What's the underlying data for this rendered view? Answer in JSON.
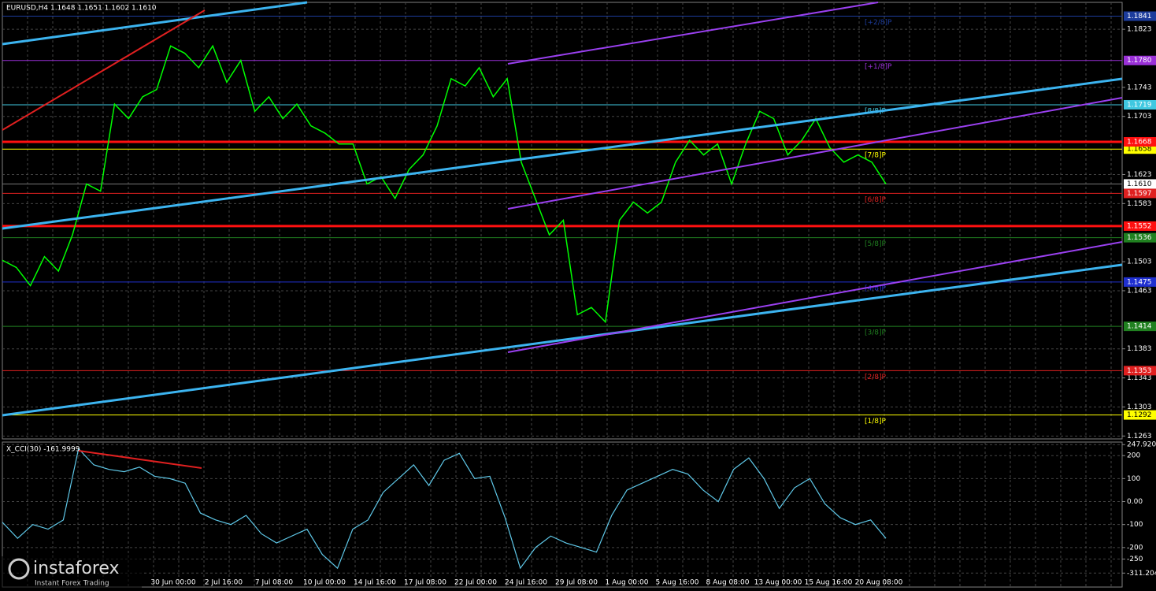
{
  "chart_data": [
    {
      "type": "line",
      "title": "EURUSD,H4  1.1648 1.1651 1.1602 1.1610",
      "color": "#00ff00",
      "values": [
        1.1505,
        1.1495,
        1.147,
        1.151,
        1.149,
        1.154,
        1.161,
        1.16,
        1.172,
        1.17,
        1.173,
        1.174,
        1.18,
        1.179,
        1.177,
        1.18,
        1.175,
        1.178,
        1.171,
        1.173,
        1.17,
        1.172,
        1.169,
        1.168,
        1.1665,
        1.1665,
        1.161,
        1.162,
        1.159,
        1.163,
        1.165,
        1.169,
        1.1755,
        1.1745,
        1.177,
        1.173,
        1.1755,
        1.164,
        1.159,
        1.154,
        1.156,
        1.143,
        1.144,
        1.142,
        1.156,
        1.1585,
        1.157,
        1.1585,
        1.164,
        1.167,
        1.165,
        1.1665,
        1.161,
        1.1665,
        1.171,
        1.17,
        1.165,
        1.167,
        1.17,
        1.166,
        1.164,
        1.165,
        1.164,
        1.161
      ],
      "ylim": [
        1.1259,
        1.186
      ],
      "yticks": [
        1.1823,
        1.1743,
        1.1703,
        1.1623,
        1.1583,
        1.1503,
        1.1463,
        1.1383,
        1.1343,
        1.1303,
        1.1263
      ],
      "grid": true,
      "levels": [
        {
          "value": 1.1841,
          "label": "1.1841",
          "name": "[+2/8]P",
          "color": "#1c3c9c"
        },
        {
          "value": 1.178,
          "label": "1.1780",
          "name": "[+1/8]P",
          "color": "#9a30d8"
        },
        {
          "value": 1.1719,
          "label": "1.1719",
          "name": "[8/8]P",
          "color": "#40c8e0"
        },
        {
          "value": 1.1658,
          "label": "1.1658",
          "name": "[7/8]P",
          "color": "#ffff00"
        },
        {
          "value": 1.1597,
          "label": "1.1597",
          "name": "[6/8]P",
          "color": "#e02020"
        },
        {
          "value": 1.1536,
          "label": "1.1536",
          "name": "[5/8]P",
          "color": "#208020"
        },
        {
          "value": 1.1475,
          "label": "1.1475",
          "name": "[4/8]P",
          "color": "#2030d0"
        },
        {
          "value": 1.1414,
          "label": "1.1414",
          "name": "[3/8]P",
          "color": "#208020"
        },
        {
          "value": 1.1353,
          "label": "1.1353",
          "name": "[2/8]P",
          "color": "#e02020"
        },
        {
          "value": 1.1292,
          "label": "1.1292",
          "name": "[1/8]P",
          "color": "#ffff00"
        }
      ],
      "support_resistance": [
        {
          "value": 1.1668,
          "label": "1.1668"
        },
        {
          "value": 1.1552,
          "label": "1.1552"
        }
      ],
      "current_price": {
        "value": 1.161,
        "label": "1.1610"
      },
      "time_labels": [
        "30 Jun 00:00",
        "2 Jul 16:00",
        "7 Jul 08:00",
        "10 Jul 00:00",
        "14 Jul 16:00",
        "17 Jul 08:00",
        "22 Jul 00:00",
        "24 Jul 16:00",
        "29 Jul 08:00",
        "1 Aug 00:00",
        "5 Aug 16:00",
        "8 Aug 08:00",
        "13 Aug 00:00",
        "15 Aug 16:00",
        "20 Aug 08:00"
      ]
    },
    {
      "type": "line",
      "title": "X_CCI(30) -161.9999",
      "color": "#5fc8e8",
      "values": [
        -90,
        -160,
        -100,
        -120,
        -80,
        230,
        160,
        140,
        130,
        150,
        110,
        100,
        80,
        -50,
        -80,
        -100,
        -60,
        -140,
        -180,
        -150,
        -120,
        -230,
        -290,
        -120,
        -80,
        40,
        100,
        160,
        70,
        180,
        210,
        100,
        110,
        -70,
        -290,
        -200,
        -150,
        -180,
        -200,
        -220,
        -60,
        50,
        80,
        110,
        140,
        120,
        50,
        0,
        140,
        190,
        100,
        -30,
        60,
        100,
        -10,
        -70,
        -100,
        -80,
        -160
      ],
      "ylim": [
        -372,
        259
      ],
      "yticks": [
        247.9205,
        200,
        100,
        {
          "value": 0,
          "label": "0.00"
        },
        -100,
        -200,
        -250,
        -311.204
      ]
    }
  ],
  "logo": {
    "name": "instaforex",
    "tagline": "Instant Forex Trading"
  }
}
